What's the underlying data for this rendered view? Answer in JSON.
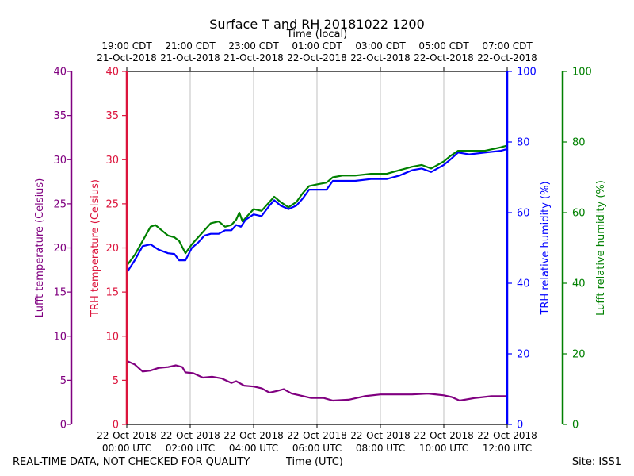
{
  "chart_data": {
    "type": "line",
    "title": "Surface T and RH 20181022 1200",
    "top_axis_label": "Time (local)",
    "bottom_axis_label": "Time (UTC)",
    "x_unit": "hours since 22-Oct-2018 00:00 UTC",
    "xlim": [
      0,
      12
    ],
    "top_ticks": [
      {
        "x": 0,
        "line1": "19:00 CDT",
        "line2": "21-Oct-2018"
      },
      {
        "x": 2,
        "line1": "21:00 CDT",
        "line2": "21-Oct-2018"
      },
      {
        "x": 4,
        "line1": "23:00 CDT",
        "line2": "21-Oct-2018"
      },
      {
        "x": 6,
        "line1": "01:00 CDT",
        "line2": "22-Oct-2018"
      },
      {
        "x": 8,
        "line1": "03:00 CDT",
        "line2": "22-Oct-2018"
      },
      {
        "x": 10,
        "line1": "05:00 CDT",
        "line2": "22-Oct-2018"
      },
      {
        "x": 12,
        "line1": "07:00 CDT",
        "line2": "22-Oct-2018"
      }
    ],
    "bottom_ticks": [
      {
        "x": 0,
        "line1": "22-Oct-2018",
        "line2": "00:00 UTC"
      },
      {
        "x": 2,
        "line1": "22-Oct-2018",
        "line2": "02:00 UTC"
      },
      {
        "x": 4,
        "line1": "22-Oct-2018",
        "line2": "04:00 UTC"
      },
      {
        "x": 6,
        "line1": "22-Oct-2018",
        "line2": "06:00 UTC"
      },
      {
        "x": 8,
        "line1": "22-Oct-2018",
        "line2": "08:00 UTC"
      },
      {
        "x": 10,
        "line1": "22-Oct-2018",
        "line2": "10:00 UTC"
      },
      {
        "x": 12,
        "line1": "22-Oct-2018",
        "line2": "12:00 UTC"
      }
    ],
    "grid": "vertical",
    "axes": [
      {
        "id": "lufft_temp",
        "label": "Lufft temperature (Celsius)",
        "side": "left-outer",
        "color": "#800080",
        "ylim": [
          0,
          40
        ],
        "ticks": [
          0,
          5,
          10,
          15,
          20,
          25,
          30,
          35,
          40
        ]
      },
      {
        "id": "trh_temp",
        "label": "TRH temperature (Celsius)",
        "side": "left-inner",
        "color": "#dc143c",
        "ylim": [
          0,
          40
        ],
        "ticks": [
          0,
          5,
          10,
          15,
          20,
          25,
          30,
          35,
          40
        ]
      },
      {
        "id": "trh_rh",
        "label": "TRH relative humidity (%)",
        "side": "right-inner",
        "color": "#0000ff",
        "ylim": [
          0,
          100
        ],
        "ticks": [
          0,
          20,
          40,
          60,
          80,
          100
        ]
      },
      {
        "id": "lufft_rh",
        "label": "Lufft relative humidity (%)",
        "side": "right-outer",
        "color": "#008000",
        "ylim": [
          0,
          100
        ],
        "ticks": [
          0,
          20,
          40,
          60,
          80,
          100
        ]
      }
    ],
    "series": [
      {
        "name": "Lufft relative humidity",
        "axis": "lufft_rh",
        "color": "#008000",
        "points": [
          [
            0,
            45
          ],
          [
            0.25,
            48
          ],
          [
            0.5,
            52
          ],
          [
            0.75,
            56
          ],
          [
            0.9,
            56.5
          ],
          [
            1.1,
            55
          ],
          [
            1.3,
            53.5
          ],
          [
            1.5,
            53
          ],
          [
            1.65,
            52
          ],
          [
            1.85,
            48.5
          ],
          [
            2.05,
            51
          ],
          [
            2.25,
            53
          ],
          [
            2.45,
            55
          ],
          [
            2.65,
            57
          ],
          [
            2.9,
            57.5
          ],
          [
            3.1,
            56
          ],
          [
            3.3,
            56.5
          ],
          [
            3.45,
            58
          ],
          [
            3.55,
            60
          ],
          [
            3.65,
            57.5
          ],
          [
            3.8,
            59
          ],
          [
            4.0,
            61
          ],
          [
            4.25,
            60.5
          ],
          [
            4.5,
            63
          ],
          [
            4.65,
            64.5
          ],
          [
            4.85,
            63
          ],
          [
            5.1,
            61.5
          ],
          [
            5.35,
            63
          ],
          [
            5.55,
            65.5
          ],
          [
            5.75,
            67.5
          ],
          [
            6.0,
            68
          ],
          [
            6.3,
            68.5
          ],
          [
            6.5,
            70
          ],
          [
            6.8,
            70.5
          ],
          [
            7.2,
            70.5
          ],
          [
            7.7,
            71
          ],
          [
            8.2,
            71
          ],
          [
            8.6,
            72
          ],
          [
            9.0,
            73
          ],
          [
            9.3,
            73.5
          ],
          [
            9.6,
            72.5
          ],
          [
            10.0,
            74.5
          ],
          [
            10.2,
            76
          ],
          [
            10.45,
            77.5
          ],
          [
            10.8,
            77.5
          ],
          [
            11.3,
            77.5
          ],
          [
            11.8,
            78.5
          ],
          [
            12.0,
            79
          ]
        ]
      },
      {
        "name": "TRH relative humidity",
        "axis": "trh_rh",
        "color": "#0000ff",
        "points": [
          [
            0,
            43
          ],
          [
            0.25,
            46.5
          ],
          [
            0.5,
            50.5
          ],
          [
            0.75,
            51
          ],
          [
            1.0,
            49.5
          ],
          [
            1.3,
            48.5
          ],
          [
            1.5,
            48.3
          ],
          [
            1.65,
            46.5
          ],
          [
            1.85,
            46.5
          ],
          [
            2.05,
            50
          ],
          [
            2.25,
            51.5
          ],
          [
            2.45,
            53.5
          ],
          [
            2.65,
            54
          ],
          [
            2.9,
            54
          ],
          [
            3.1,
            55
          ],
          [
            3.3,
            55
          ],
          [
            3.45,
            56.5
          ],
          [
            3.6,
            56
          ],
          [
            3.75,
            58
          ],
          [
            4.0,
            59.5
          ],
          [
            4.25,
            59
          ],
          [
            4.5,
            62
          ],
          [
            4.65,
            63.5
          ],
          [
            4.85,
            62
          ],
          [
            5.1,
            61
          ],
          [
            5.35,
            62
          ],
          [
            5.55,
            64
          ],
          [
            5.75,
            66.5
          ],
          [
            6.0,
            66.5
          ],
          [
            6.3,
            66.5
          ],
          [
            6.5,
            69
          ],
          [
            6.8,
            69
          ],
          [
            7.2,
            69
          ],
          [
            7.7,
            69.5
          ],
          [
            8.2,
            69.5
          ],
          [
            8.6,
            70.5
          ],
          [
            9.0,
            72
          ],
          [
            9.3,
            72.5
          ],
          [
            9.6,
            71.5
          ],
          [
            10.0,
            73.5
          ],
          [
            10.2,
            75
          ],
          [
            10.45,
            77
          ],
          [
            10.8,
            76.5
          ],
          [
            11.3,
            77
          ],
          [
            11.8,
            77.5
          ],
          [
            12.0,
            78
          ]
        ]
      },
      {
        "name": "Lufft temperature",
        "axis": "lufft_temp",
        "color": "#800080",
        "points": [
          [
            0,
            7.2
          ],
          [
            0.25,
            6.8
          ],
          [
            0.5,
            6.0
          ],
          [
            0.75,
            6.1
          ],
          [
            1.0,
            6.4
          ],
          [
            1.3,
            6.5
          ],
          [
            1.55,
            6.7
          ],
          [
            1.75,
            6.5
          ],
          [
            1.85,
            5.9
          ],
          [
            2.1,
            5.8
          ],
          [
            2.4,
            5.3
          ],
          [
            2.7,
            5.4
          ],
          [
            3.0,
            5.2
          ],
          [
            3.3,
            4.7
          ],
          [
            3.45,
            4.9
          ],
          [
            3.7,
            4.4
          ],
          [
            4.0,
            4.3
          ],
          [
            4.25,
            4.1
          ],
          [
            4.5,
            3.6
          ],
          [
            4.75,
            3.8
          ],
          [
            4.95,
            4.0
          ],
          [
            5.2,
            3.5
          ],
          [
            5.45,
            3.3
          ],
          [
            5.8,
            3.0
          ],
          [
            6.2,
            3.0
          ],
          [
            6.5,
            2.7
          ],
          [
            7.0,
            2.8
          ],
          [
            7.5,
            3.2
          ],
          [
            8.0,
            3.4
          ],
          [
            8.5,
            3.4
          ],
          [
            9.0,
            3.4
          ],
          [
            9.5,
            3.5
          ],
          [
            10.0,
            3.3
          ],
          [
            10.25,
            3.1
          ],
          [
            10.5,
            2.7
          ],
          [
            11.0,
            3.0
          ],
          [
            11.5,
            3.2
          ],
          [
            12.0,
            3.2
          ]
        ]
      }
    ]
  },
  "footer": {
    "left": "REAL-TIME DATA, NOT CHECKED FOR QUALITY",
    "center": "Time (UTC)",
    "right": "Site: ISS1"
  }
}
